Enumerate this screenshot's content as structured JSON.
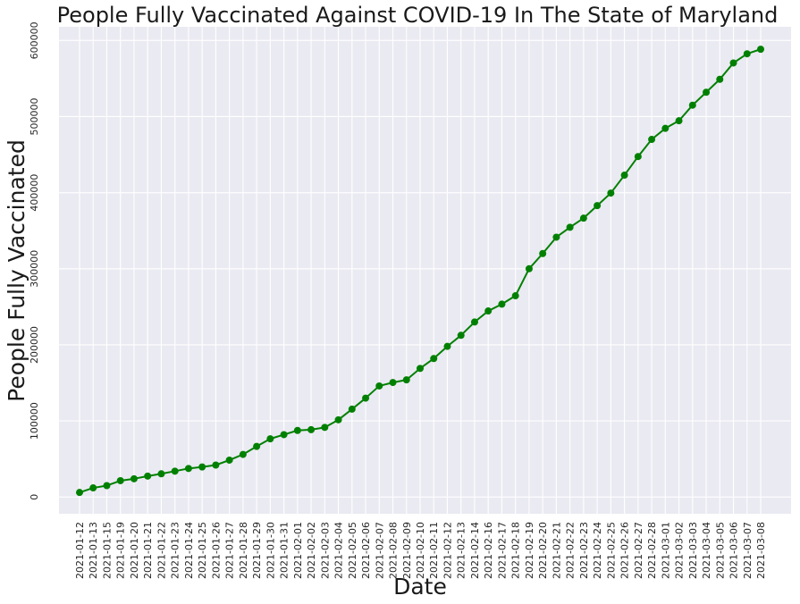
{
  "chart_data": {
    "type": "line",
    "title": "People Fully Vaccinated Against COVID-19 In The State of Maryland",
    "xlabel": "Date",
    "ylabel": "People Fully Vaccinated",
    "ylim": [
      -22000,
      618000
    ],
    "yticks": [
      0,
      100000,
      200000,
      300000,
      400000,
      500000,
      600000
    ],
    "ytick_labels": [
      "0",
      "100000",
      "200000",
      "300000",
      "400000",
      "500000",
      "600000"
    ],
    "grid": true,
    "line_color": "#008000",
    "marker": "circle",
    "categories": [
      "2021-01-12",
      "2021-01-13",
      "2021-01-15",
      "2021-01-19",
      "2021-01-20",
      "2021-01-21",
      "2021-01-22",
      "2021-01-23",
      "2021-01-24",
      "2021-01-25",
      "2021-01-26",
      "2021-01-27",
      "2021-01-28",
      "2021-01-29",
      "2021-01-30",
      "2021-01-31",
      "2021-02-01",
      "2021-02-02",
      "2021-02-03",
      "2021-02-04",
      "2021-02-05",
      "2021-02-06",
      "2021-02-07",
      "2021-02-08",
      "2021-02-09",
      "2021-02-10",
      "2021-02-11",
      "2021-02-12",
      "2021-02-13",
      "2021-02-14",
      "2021-02-16",
      "2021-02-17",
      "2021-02-18",
      "2021-02-19",
      "2021-02-20",
      "2021-02-21",
      "2021-02-22",
      "2021-02-23",
      "2021-02-24",
      "2021-02-25",
      "2021-02-26",
      "2021-02-27",
      "2021-02-28",
      "2021-03-01",
      "2021-03-02",
      "2021-03-03",
      "2021-03-04",
      "2021-03-05",
      "2021-03-06",
      "2021-03-07",
      "2021-03-08"
    ],
    "values": [
      6000,
      12000,
      15000,
      21500,
      24000,
      27500,
      30500,
      34000,
      37500,
      39500,
      42000,
      48500,
      56000,
      66500,
      76500,
      82000,
      87500,
      88500,
      91500,
      101500,
      115500,
      130000,
      146000,
      150500,
      154000,
      169000,
      182000,
      198000,
      212500,
      230000,
      244500,
      253500,
      264500,
      300000,
      320000,
      341500,
      354500,
      366500,
      383000,
      399500,
      423000,
      447500,
      470000,
      484500,
      494500,
      515000,
      532000,
      549000,
      570500,
      582500,
      588500
    ]
  }
}
